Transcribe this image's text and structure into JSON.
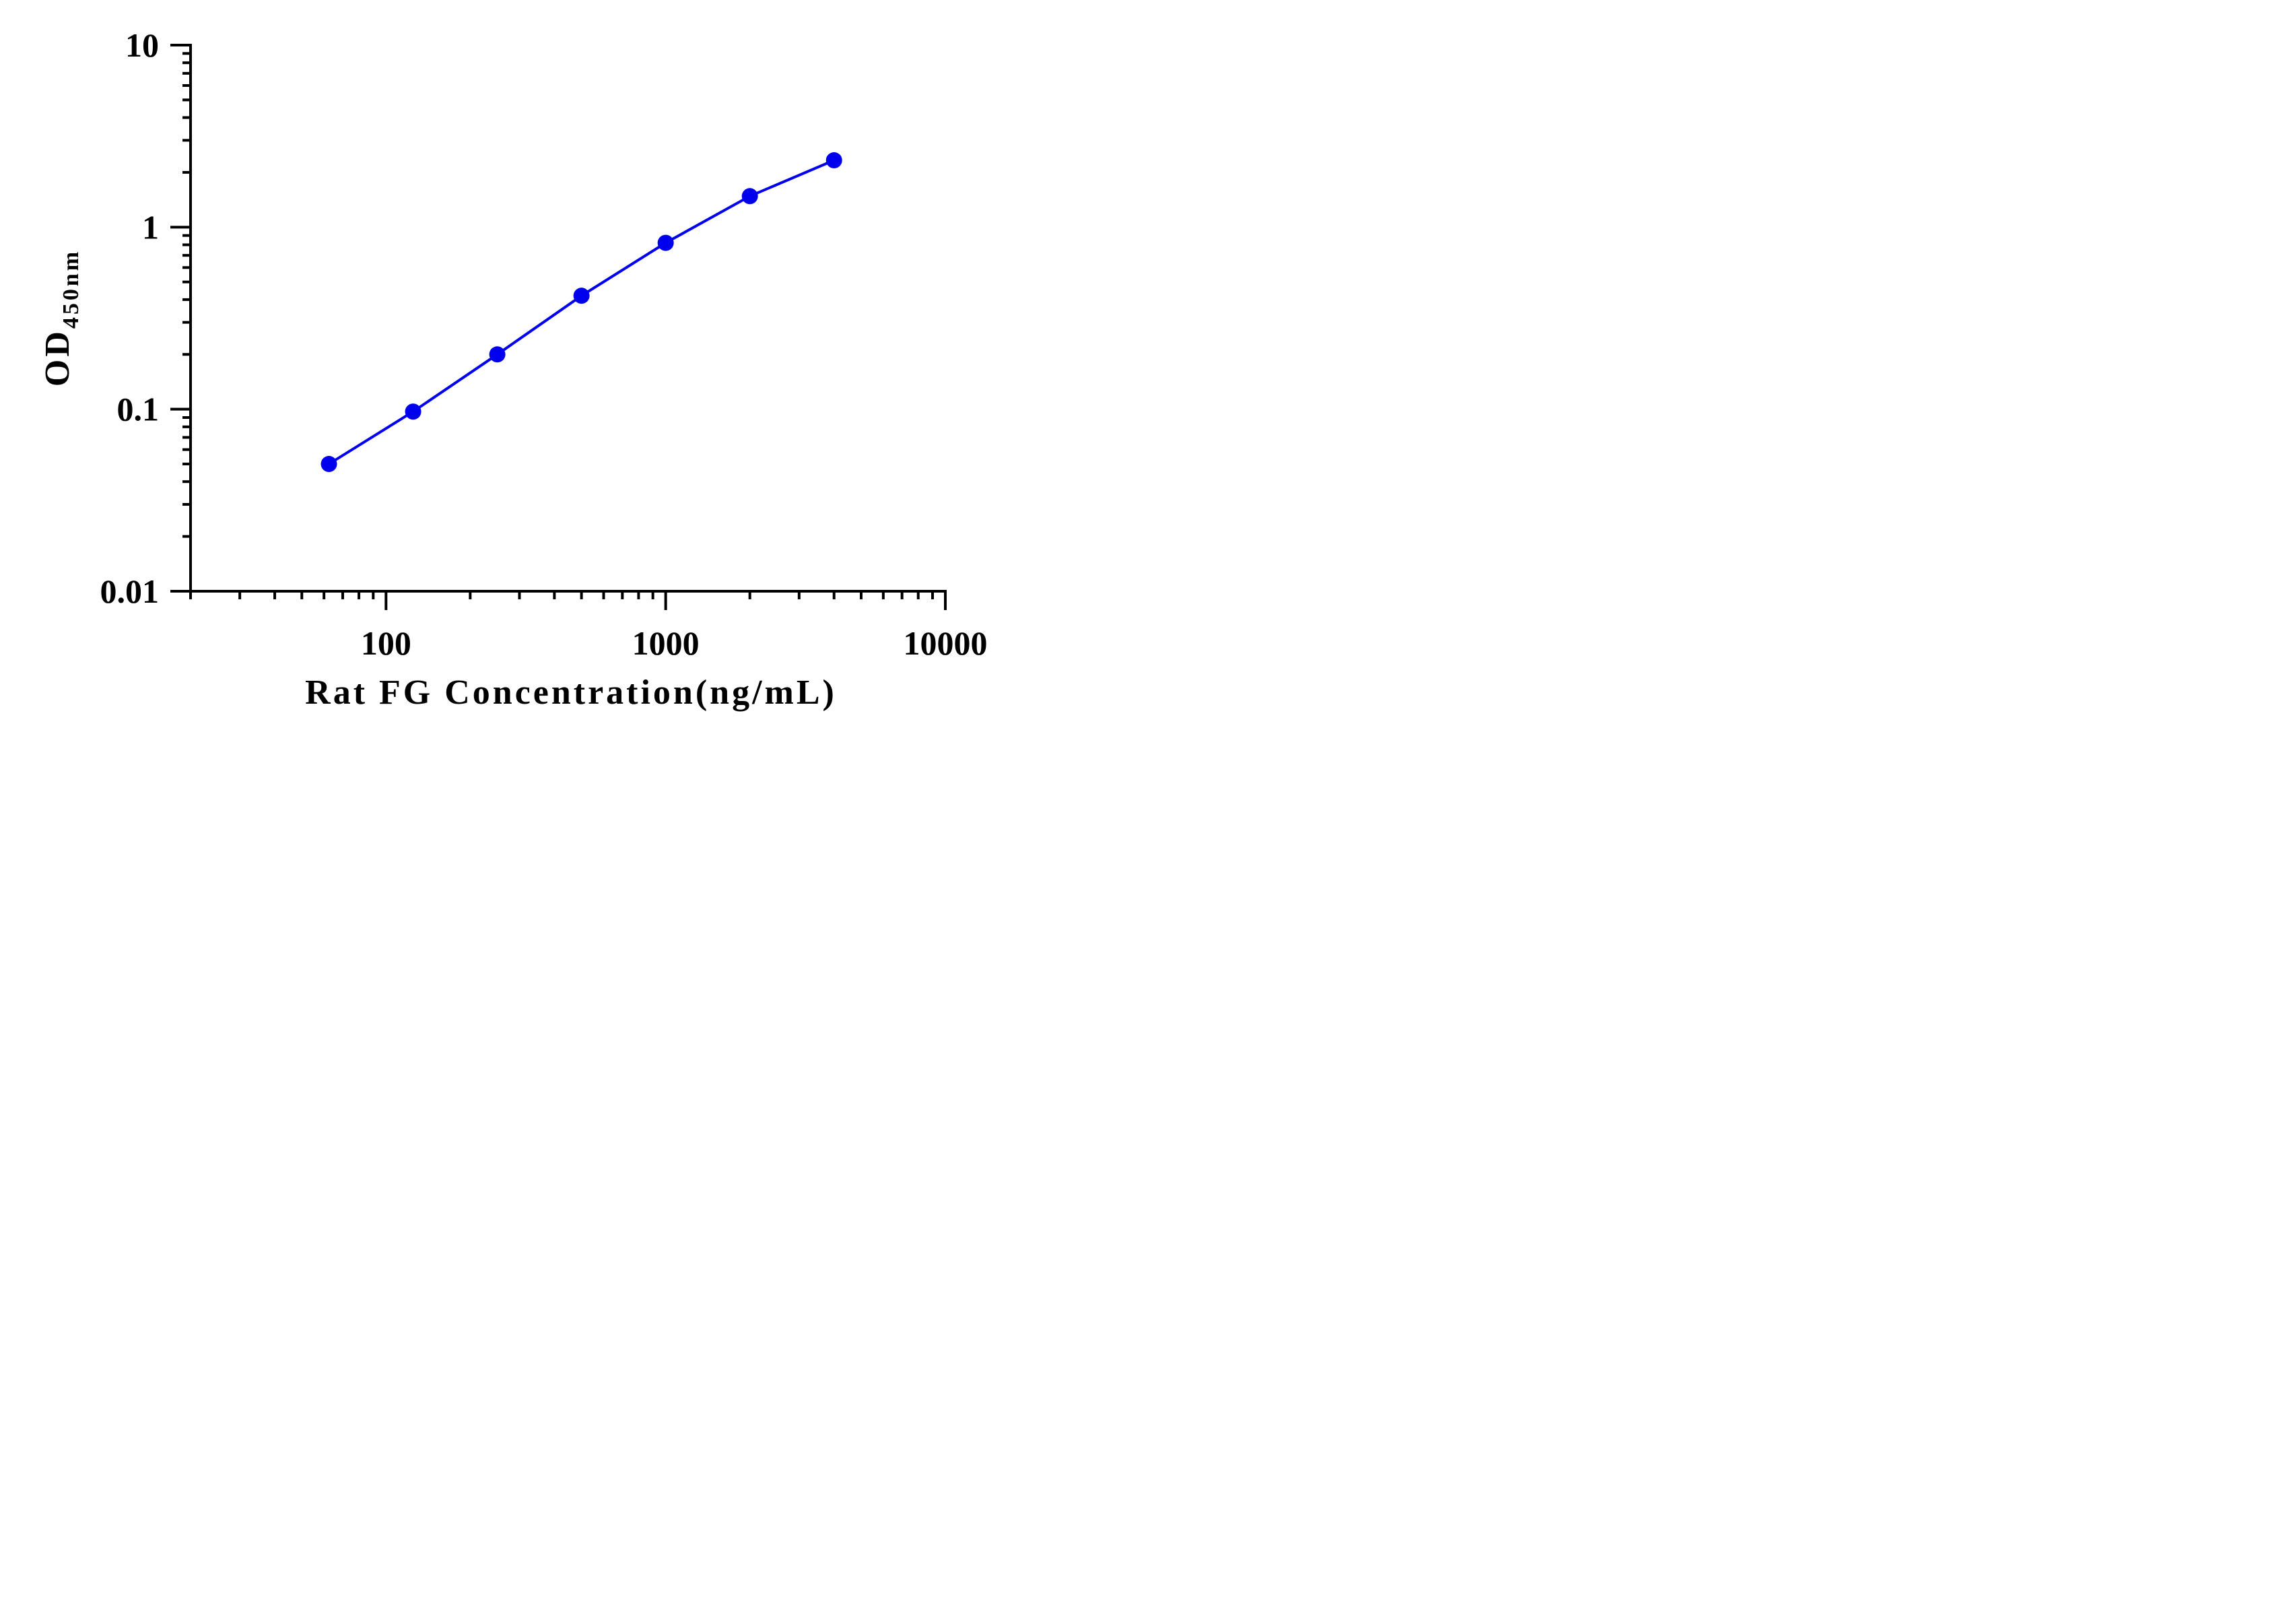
{
  "colors": {
    "series": "#0000ee",
    "axis": "#000000",
    "background": "#ffffff"
  },
  "chart_data": {
    "type": "line",
    "title": "",
    "xlabel": "Rat FG Concentration(ng/mL)",
    "ylabel": {
      "main": "OD",
      "subscript": "450nm"
    },
    "xscale": "log",
    "yscale": "log",
    "xlim": [
      20,
      10000
    ],
    "ylim": [
      0.01,
      10
    ],
    "x_ticks": [
      100,
      1000,
      10000
    ],
    "x_tick_labels": [
      "100",
      "1000",
      "10000"
    ],
    "y_ticks": [
      0.01,
      0.1,
      1,
      10
    ],
    "y_tick_labels": [
      "0.01",
      "0.1",
      "1",
      "10"
    ],
    "grid": false,
    "legend": "none",
    "series": [
      {
        "x": [
          62.5,
          125,
          250,
          500,
          1000,
          2000,
          4000
        ],
        "y": [
          0.05,
          0.097,
          0.2,
          0.42,
          0.82,
          1.48,
          2.33
        ],
        "marker": "circle",
        "line": "solid"
      }
    ]
  }
}
